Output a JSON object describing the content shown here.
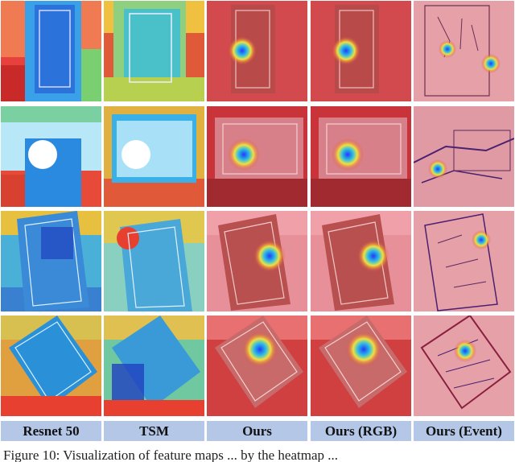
{
  "columns": [
    {
      "label": "Resnet 50",
      "style": "jet-full"
    },
    {
      "label": "TSM",
      "style": "jet-full"
    },
    {
      "label": "Ours",
      "style": "red-spot"
    },
    {
      "label": "Ours (RGB)",
      "style": "red-spot"
    },
    {
      "label": "Ours (Event)",
      "style": "event"
    }
  ],
  "rows": [
    {
      "scene": "playing-card-upright"
    },
    {
      "scene": "card-with-hand-and-router"
    },
    {
      "scene": "playing-card-tilted-left"
    },
    {
      "scene": "playing-card-tilted-right"
    }
  ],
  "caption": "Figure 10: Visualization of feature maps ... by the heatmap ...",
  "colors": {
    "label_bg": "#b4c7e7",
    "heat_red": "#c8343a",
    "heat_blue": "#1f3cff",
    "heat_yellow": "#f0e040"
  }
}
